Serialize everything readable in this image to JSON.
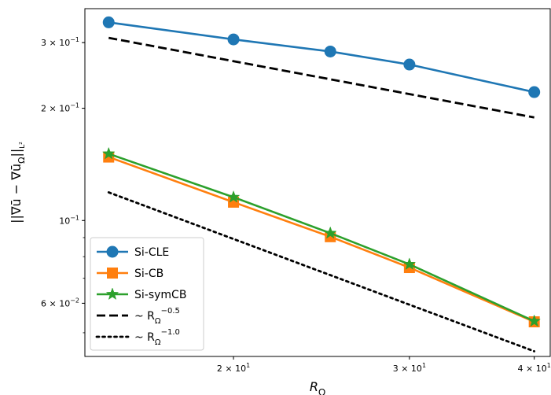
{
  "chart_data": {
    "type": "line",
    "xscale": "log",
    "yscale": "log",
    "xlim": [
      14.2,
      41.5
    ],
    "ylim": [
      0.0432,
      0.37
    ],
    "xlabel": "R",
    "xlabel_sub": "Ω",
    "ylabel": "||∇ū − ∇ū",
    "ylabel_sub": "Ω",
    "ylabel_suffix": "||",
    "ylabel_sub2": "L²",
    "x_ticks": [
      {
        "value": 20,
        "base": "2 × 10",
        "exp": "1"
      },
      {
        "value": 30,
        "base": "3 × 10",
        "exp": "1"
      },
      {
        "value": 40,
        "base": "4 × 10",
        "exp": "1"
      }
    ],
    "y_ticks": [
      {
        "value": 0.06,
        "base": "6 × 10",
        "exp": "−2"
      },
      {
        "value": 0.1,
        "base": "10",
        "exp": "−1"
      },
      {
        "value": 0.2,
        "base": "2 × 10",
        "exp": "−1"
      },
      {
        "value": 0.3,
        "base": "3 × 10",
        "exp": "−1"
      }
    ],
    "grid": false,
    "legend_position": "lower-left",
    "series": [
      {
        "name": "Si-CLE",
        "color": "#1f77b4",
        "marker": "circle",
        "style": "solid",
        "x": [
          15,
          20,
          25,
          30,
          40
        ],
        "y": [
          0.34,
          0.306,
          0.284,
          0.262,
          0.221
        ]
      },
      {
        "name": "Si-CB",
        "color": "#ff7f0e",
        "marker": "square",
        "style": "solid",
        "x": [
          15,
          20,
          25,
          30,
          40
        ],
        "y": [
          0.148,
          0.112,
          0.0905,
          0.0748,
          0.0535
        ]
      },
      {
        "name": "Si-symCB",
        "color": "#2ca02c",
        "marker": "star",
        "style": "solid",
        "x": [
          15,
          20,
          25,
          30,
          40
        ],
        "y": [
          0.151,
          0.1155,
          0.0925,
          0.0763,
          0.0537
        ]
      },
      {
        "name": "~ R",
        "name_sub": "Ω",
        "name_sup": "−0.5",
        "color": "#000000",
        "marker": "none",
        "style": "dashed",
        "x": [
          15,
          40
        ],
        "y": [
          0.309,
          0.189
        ]
      },
      {
        "name": "~ R",
        "name_sub": "Ω",
        "name_sup": "−1.0",
        "color": "#000000",
        "marker": "none",
        "style": "dotted",
        "x": [
          15,
          40
        ],
        "y": [
          0.119,
          0.0446
        ]
      }
    ]
  }
}
